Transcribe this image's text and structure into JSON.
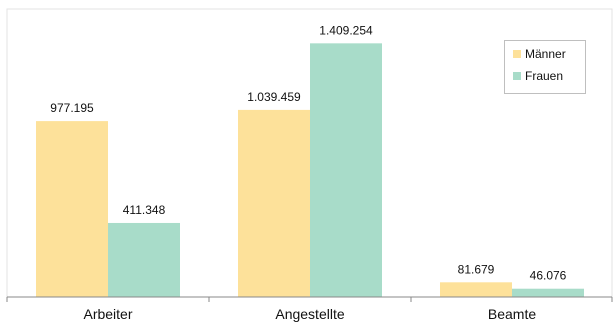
{
  "chart_data": {
    "type": "bar",
    "title": "",
    "xlabel": "",
    "ylabel": "",
    "categories": [
      "Arbeiter",
      "Angestellte",
      "Beamte"
    ],
    "series": [
      {
        "name": "Männer",
        "color": "#fde19a",
        "values": [
          977195,
          1039459,
          81679
        ],
        "labels": [
          "977.195",
          "1.039.459",
          "81.679"
        ]
      },
      {
        "name": "Frauen",
        "color": "#a8dcc9",
        "values": [
          411348,
          1409254,
          46076
        ],
        "labels": [
          "411.348",
          "1.409.254",
          "46.076"
        ]
      }
    ],
    "ylim": [
      0,
      1600000
    ],
    "grid": false,
    "legend_position": "top-right"
  }
}
